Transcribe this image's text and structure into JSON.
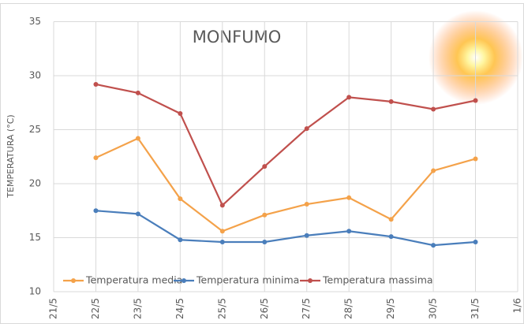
{
  "chart_data": {
    "type": "line",
    "title": "MONFUMO",
    "y_label": "TEMPERATURA (°C)",
    "categories": [
      "21/5",
      "22/5",
      "23/5",
      "24/5",
      "25/5",
      "26/5",
      "27/5",
      "28/5",
      "29/5",
      "30/5",
      "31/5",
      "1/6"
    ],
    "series": [
      {
        "name": "Temperatura media",
        "color": "#f4a24a",
        "values": [
          null,
          22.4,
          24.2,
          18.6,
          15.6,
          17.1,
          18.1,
          18.7,
          16.7,
          21.2,
          22.3,
          null
        ]
      },
      {
        "name": "Temperatura minima",
        "color": "#4a7ebb",
        "values": [
          null,
          17.5,
          17.2,
          14.8,
          14.6,
          14.6,
          15.2,
          15.6,
          15.1,
          14.3,
          14.6,
          null
        ]
      },
      {
        "name": "Temperatura massima",
        "color": "#c0504d",
        "values": [
          null,
          29.2,
          28.4,
          26.5,
          18.0,
          21.6,
          25.1,
          28.0,
          27.6,
          26.9,
          27.7,
          null
        ]
      }
    ],
    "ylim": [
      10,
      35
    ],
    "yticks": [
      10,
      15,
      20,
      25,
      30,
      35
    ],
    "grid": true,
    "legend": "bottom"
  }
}
